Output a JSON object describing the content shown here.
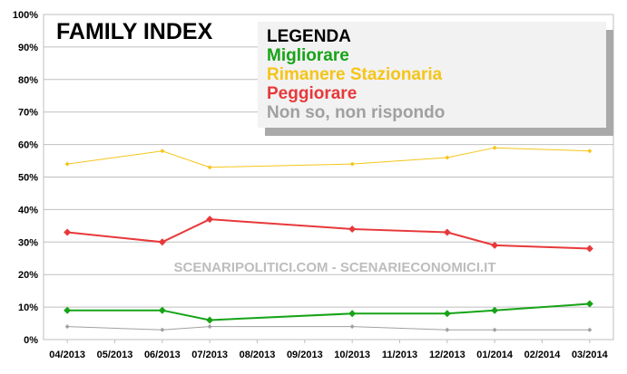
{
  "chart_data": {
    "type": "line",
    "title": "FAMILY INDEX",
    "watermark": "SCENARIPOLITICI.COM - SCENARIECONOMICI.IT",
    "categories": [
      "04/2013",
      "05/2013",
      "06/2013",
      "07/2013",
      "08/2013",
      "09/2013",
      "10/2013",
      "11/2013",
      "12/2013",
      "01/2014",
      "02/2014",
      "03/2014"
    ],
    "y_ticks": [
      "0%",
      "10%",
      "20%",
      "30%",
      "40%",
      "50%",
      "60%",
      "70%",
      "80%",
      "90%",
      "100%"
    ],
    "ylim": [
      0,
      100
    ],
    "grid": true,
    "legend": {
      "title": "LEGENDA",
      "placement": "top-center",
      "items": [
        "Migliorare",
        "Rimanere Stazionaria",
        "Peggiorare",
        "Non so, non rispondo"
      ]
    },
    "series": [
      {
        "name": "Migliorare",
        "color": "#17a317",
        "x": [
          0,
          2,
          3,
          6,
          8,
          9,
          11
        ],
        "values": [
          9,
          9,
          6,
          8,
          8,
          9,
          11
        ]
      },
      {
        "name": "Rimanere Stazionaria",
        "color": "#f5c518",
        "x": [
          0,
          2,
          3,
          6,
          8,
          9,
          11
        ],
        "values": [
          54,
          58,
          53,
          54,
          56,
          59,
          58
        ]
      },
      {
        "name": "Peggiorare",
        "color": "#e8383a",
        "x": [
          0,
          2,
          3,
          6,
          8,
          9,
          11
        ],
        "values": [
          33,
          30,
          37,
          34,
          33,
          29,
          28
        ]
      },
      {
        "name": "Non so, non rispondo",
        "color": "#a0a0a0",
        "x": [
          0,
          2,
          3,
          6,
          8,
          9,
          11
        ],
        "values": [
          4,
          3,
          4,
          4,
          3,
          3,
          3
        ]
      }
    ]
  }
}
